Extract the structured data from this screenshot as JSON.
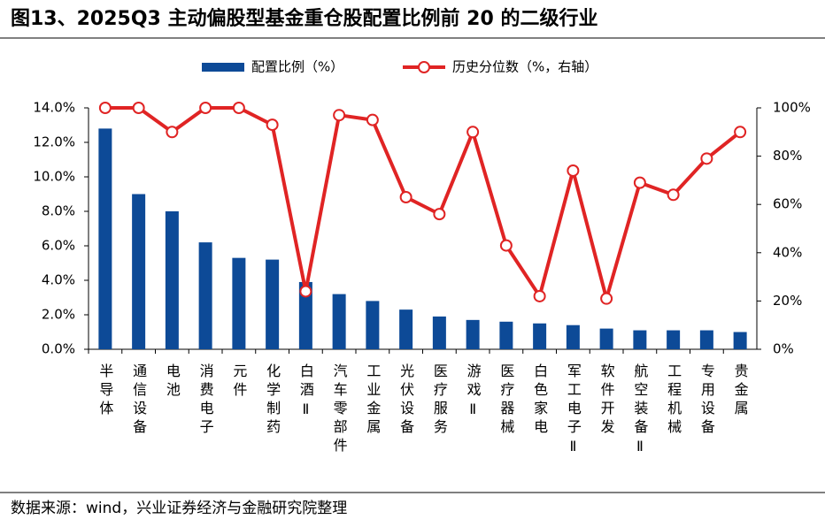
{
  "chart_data": {
    "type": "bar-line",
    "title": "图13、2025Q3 主动偏股型基金重仓股配置比例前 20 的二级行业",
    "source": "数据来源：wind，兴业证券经济与金融研究院整理",
    "categories": [
      "半导体",
      "通信设备",
      "电池",
      "消费电子",
      "元件",
      "化学制药",
      "白酒Ⅱ",
      "汽车零部件",
      "工业金属",
      "光伏设备",
      "医疗服务",
      "游戏Ⅱ",
      "医疗器械",
      "白色家电",
      "军工电子Ⅱ",
      "软件开发",
      "航空装备Ⅱ",
      "工程机械",
      "专用设备",
      "贵金属"
    ],
    "series": [
      {
        "name": "配置比例（%）",
        "type": "bar",
        "color": "#0d4a97",
        "values": [
          12.8,
          9.0,
          8.0,
          6.2,
          5.3,
          5.2,
          3.9,
          3.2,
          2.8,
          2.3,
          1.9,
          1.7,
          1.6,
          1.5,
          1.4,
          1.2,
          1.1,
          1.1,
          1.1,
          1.0
        ]
      },
      {
        "name": "历史分位数（%，右轴）",
        "type": "line",
        "axis": "y2",
        "color": "#e02424",
        "values": [
          100,
          100,
          90,
          100,
          100,
          93,
          24,
          97,
          95,
          63,
          56,
          90,
          43,
          22,
          74,
          21,
          69,
          64,
          79,
          90
        ]
      }
    ],
    "ylim": [
      0,
      14
    ],
    "yticks": [
      {
        "value": 0,
        "label": "0.0%"
      },
      {
        "value": 2,
        "label": "2.0%"
      },
      {
        "value": 4,
        "label": "4.0%"
      },
      {
        "value": 6,
        "label": "6.0%"
      },
      {
        "value": 8,
        "label": "8.0%"
      },
      {
        "value": 10,
        "label": "10.0%"
      },
      {
        "value": 12,
        "label": "12.0%"
      },
      {
        "value": 14,
        "label": "14.0%"
      }
    ],
    "y2lim": [
      0,
      100
    ],
    "y2ticks": [
      {
        "value": 0,
        "label": "0%"
      },
      {
        "value": 20,
        "label": "20%"
      },
      {
        "value": 40,
        "label": "40%"
      },
      {
        "value": 60,
        "label": "60%"
      },
      {
        "value": 80,
        "label": "80%"
      },
      {
        "value": 100,
        "label": "100%"
      }
    ],
    "grid": false,
    "legend": "top"
  }
}
